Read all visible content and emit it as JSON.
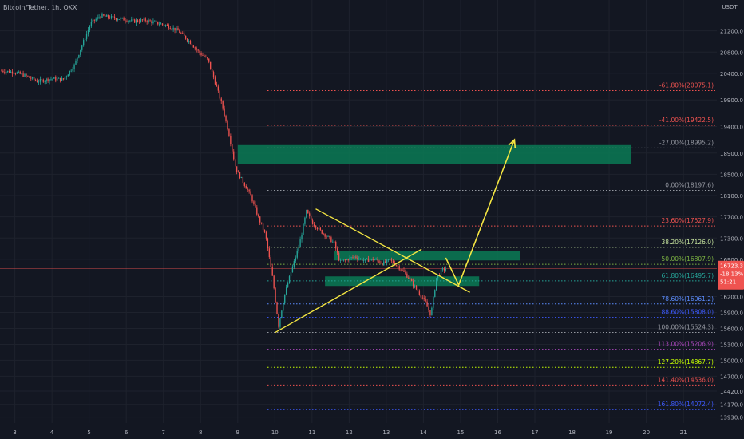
{
  "header": {
    "title": "Bitcoin/Tether, 1h, OKX"
  },
  "colors": {
    "background": "#131722",
    "grid": "#1e222d",
    "up": "#26a69a",
    "down": "#ef5350",
    "pattern": "#f5e642",
    "zone": "#0b7a55",
    "axis_text": "#b2b5be"
  },
  "chart_data": {
    "type": "candlestick",
    "title": "Bitcoin/Tether, 1h, OKX",
    "y_axis": {
      "unit": "USDT",
      "range": [
        13820,
        21600
      ],
      "ticks": [
        "21200.0",
        "20800.0",
        "20400.0",
        "19900.0",
        "19400.0",
        "18900.0",
        "18500.0",
        "18100.0",
        "17700.0",
        "17300.0",
        "16900.0",
        "16200.0",
        "15900.0",
        "15600.0",
        "15300.0",
        "15000.0",
        "14700.0",
        "14420.0",
        "14170.0",
        "13930.0"
      ]
    },
    "x_axis": {
      "ticks": [
        "3",
        "4",
        "5",
        "6",
        "7",
        "8",
        "9",
        "10",
        "11",
        "12",
        "13",
        "14",
        "15",
        "16",
        "17",
        "18",
        "19",
        "20",
        "21"
      ],
      "range_days": [
        2.6,
        21.9
      ]
    },
    "current_price": {
      "price": "16723.3",
      "change": "-18.13%",
      "countdown": "51:21",
      "value": 16723
    },
    "price_path": [
      [
        2.6,
        20450
      ],
      [
        3.0,
        20420
      ],
      [
        3.3,
        20350
      ],
      [
        3.6,
        20250
      ],
      [
        4.0,
        20300
      ],
      [
        4.3,
        20280
      ],
      [
        4.6,
        20550
      ],
      [
        4.85,
        21000
      ],
      [
        5.05,
        21350
      ],
      [
        5.3,
        21480
      ],
      [
        5.6,
        21450
      ],
      [
        5.9,
        21420
      ],
      [
        6.2,
        21380
      ],
      [
        6.5,
        21400
      ],
      [
        6.8,
        21350
      ],
      [
        7.1,
        21300
      ],
      [
        7.4,
        21200
      ],
      [
        7.7,
        21000
      ],
      [
        7.95,
        20800
      ],
      [
        8.2,
        20650
      ],
      [
        8.45,
        20100
      ],
      [
        8.6,
        19750
      ],
      [
        8.75,
        19300
      ],
      [
        8.95,
        18600
      ],
      [
        9.15,
        18350
      ],
      [
        9.35,
        18100
      ],
      [
        9.55,
        17700
      ],
      [
        9.75,
        17350
      ],
      [
        9.95,
        16500
      ],
      [
        10.1,
        15650
      ],
      [
        10.25,
        16200
      ],
      [
        10.45,
        16700
      ],
      [
        10.65,
        17150
      ],
      [
        10.85,
        17800
      ],
      [
        11.0,
        17600
      ],
      [
        11.2,
        17450
      ],
      [
        11.45,
        17300
      ],
      [
        11.6,
        17200
      ],
      [
        11.75,
        16850
      ],
      [
        11.95,
        16900
      ],
      [
        12.15,
        16950
      ],
      [
        12.4,
        16880
      ],
      [
        12.7,
        16900
      ],
      [
        12.9,
        16820
      ],
      [
        13.1,
        16880
      ],
      [
        13.3,
        16780
      ],
      [
        13.55,
        16600
      ],
      [
        13.8,
        16350
      ],
      [
        14.05,
        16100
      ],
      [
        14.2,
        15850
      ],
      [
        14.35,
        16550
      ],
      [
        14.5,
        16700
      ],
      [
        14.6,
        16723
      ]
    ],
    "fib_levels": [
      {
        "label": "-61.80%(20075.1)",
        "price": 20075.1,
        "color": "#ef5350"
      },
      {
        "label": "-41.00%(19422.5)",
        "price": 19422.5,
        "color": "#ef5350"
      },
      {
        "label": "-27.00%(18995.2)",
        "price": 18995.2,
        "color": "#9598a1"
      },
      {
        "label": "0.00%(18197.6)",
        "price": 18197.6,
        "color": "#9598a1"
      },
      {
        "label": "23.60%(17527.9)",
        "price": 17527.9,
        "color": "#ef5350"
      },
      {
        "label": "38.20%(17126.0)",
        "price": 17126.0,
        "color": "#c8e6a0"
      },
      {
        "label": "50.00%(16807.9)",
        "price": 16807.9,
        "color": "#7cb342"
      },
      {
        "label": "61.80%(16495.7)",
        "price": 16495.7,
        "color": "#26a69a"
      },
      {
        "label": "78.60%(16061.2)",
        "price": 16061.2,
        "color": "#5c8dff"
      },
      {
        "label": "88.60%(15808.0)",
        "price": 15808.0,
        "color": "#3d5afe"
      },
      {
        "label": "100.00%(15524.3)",
        "price": 15524.3,
        "color": "#9598a1"
      },
      {
        "label": "113.00%(15206.9)",
        "price": 15206.9,
        "color": "#ab47bc"
      },
      {
        "label": "127.20%(14867.7)",
        "price": 14867.7,
        "color": "#c6ff00"
      },
      {
        "label": "141.40%(14536.0)",
        "price": 14536.0,
        "color": "#ef5350"
      },
      {
        "label": "161.80%(14072.4)",
        "price": 14072.4,
        "color": "#3d5afe"
      }
    ],
    "zones": [
      {
        "x": [
          9.0,
          19.6
        ],
        "price": [
          18700,
          19050
        ]
      },
      {
        "x": [
          11.6,
          16.6
        ],
        "price": [
          16880,
          17060
        ]
      },
      {
        "x": [
          11.35,
          15.5
        ],
        "price": [
          16400,
          16580
        ]
      }
    ],
    "trendlines": [
      {
        "from": [
          10.0,
          15520
        ],
        "to": [
          13.95,
          17090
        ]
      },
      {
        "from": [
          11.1,
          17850
        ],
        "to": [
          15.25,
          16280
        ]
      }
    ],
    "projection": [
      [
        14.6,
        16930
      ],
      [
        14.95,
        16420
      ],
      [
        16.45,
        19150
      ]
    ]
  }
}
